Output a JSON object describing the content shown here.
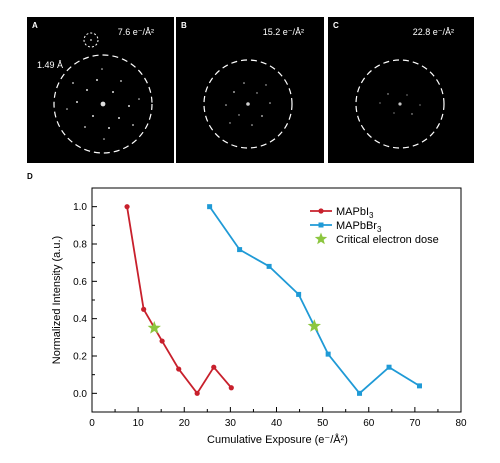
{
  "panels": [
    {
      "letter": "A",
      "dose": "7.6 e⁻/Å²",
      "resolution": "1.49 Å"
    },
    {
      "letter": "B",
      "dose": "15.2 e⁻/Å²"
    },
    {
      "letter": "C",
      "dose": "22.8 e⁻/Å²"
    }
  ],
  "chart_label": "D",
  "chart_data": {
    "type": "line",
    "xlabel": "Cumulative Exposure (e⁻/Å²)",
    "ylabel": "Normalized Intensity (a.u.)",
    "xlim": [
      0,
      80
    ],
    "ylim": [
      -0.1,
      1.1
    ],
    "xticks": [
      0,
      10,
      20,
      30,
      40,
      50,
      60,
      70,
      80
    ],
    "yticks": [
      0.0,
      0.2,
      0.4,
      0.6,
      0.8,
      1.0
    ],
    "xtick_labels": [
      "0",
      "10",
      "20",
      "30",
      "40",
      "50",
      "60",
      "70",
      "80"
    ],
    "ytick_labels": [
      "0.0",
      "0.2",
      "0.4",
      "0.6",
      "0.8",
      "1.0"
    ],
    "legend_position": "top-right",
    "series": [
      {
        "name": "MAPbI3",
        "legend_base": "MAPbI",
        "legend_sub": "3",
        "color": "#c8202c",
        "marker": "circle",
        "x": [
          7.6,
          11.2,
          15.2,
          18.8,
          22.8,
          26.4,
          30.2
        ],
        "y": [
          1.0,
          0.45,
          0.28,
          0.13,
          0.0,
          0.14,
          0.03
        ]
      },
      {
        "name": "MAPbBr3",
        "legend_base": "MAPbBr",
        "legend_sub": "3",
        "color": "#1f9ad6",
        "marker": "square",
        "x": [
          25.5,
          32.0,
          38.4,
          44.8,
          51.2,
          58.0,
          64.4,
          71.0
        ],
        "y": [
          1.0,
          0.77,
          0.68,
          0.53,
          0.21,
          0.0,
          0.14,
          0.04
        ]
      }
    ],
    "critical_points": {
      "name": "Critical electron dose",
      "color": "#8cc63f",
      "marker": "star",
      "x": [
        13.5,
        48.2
      ],
      "y": [
        0.35,
        0.36
      ]
    }
  }
}
